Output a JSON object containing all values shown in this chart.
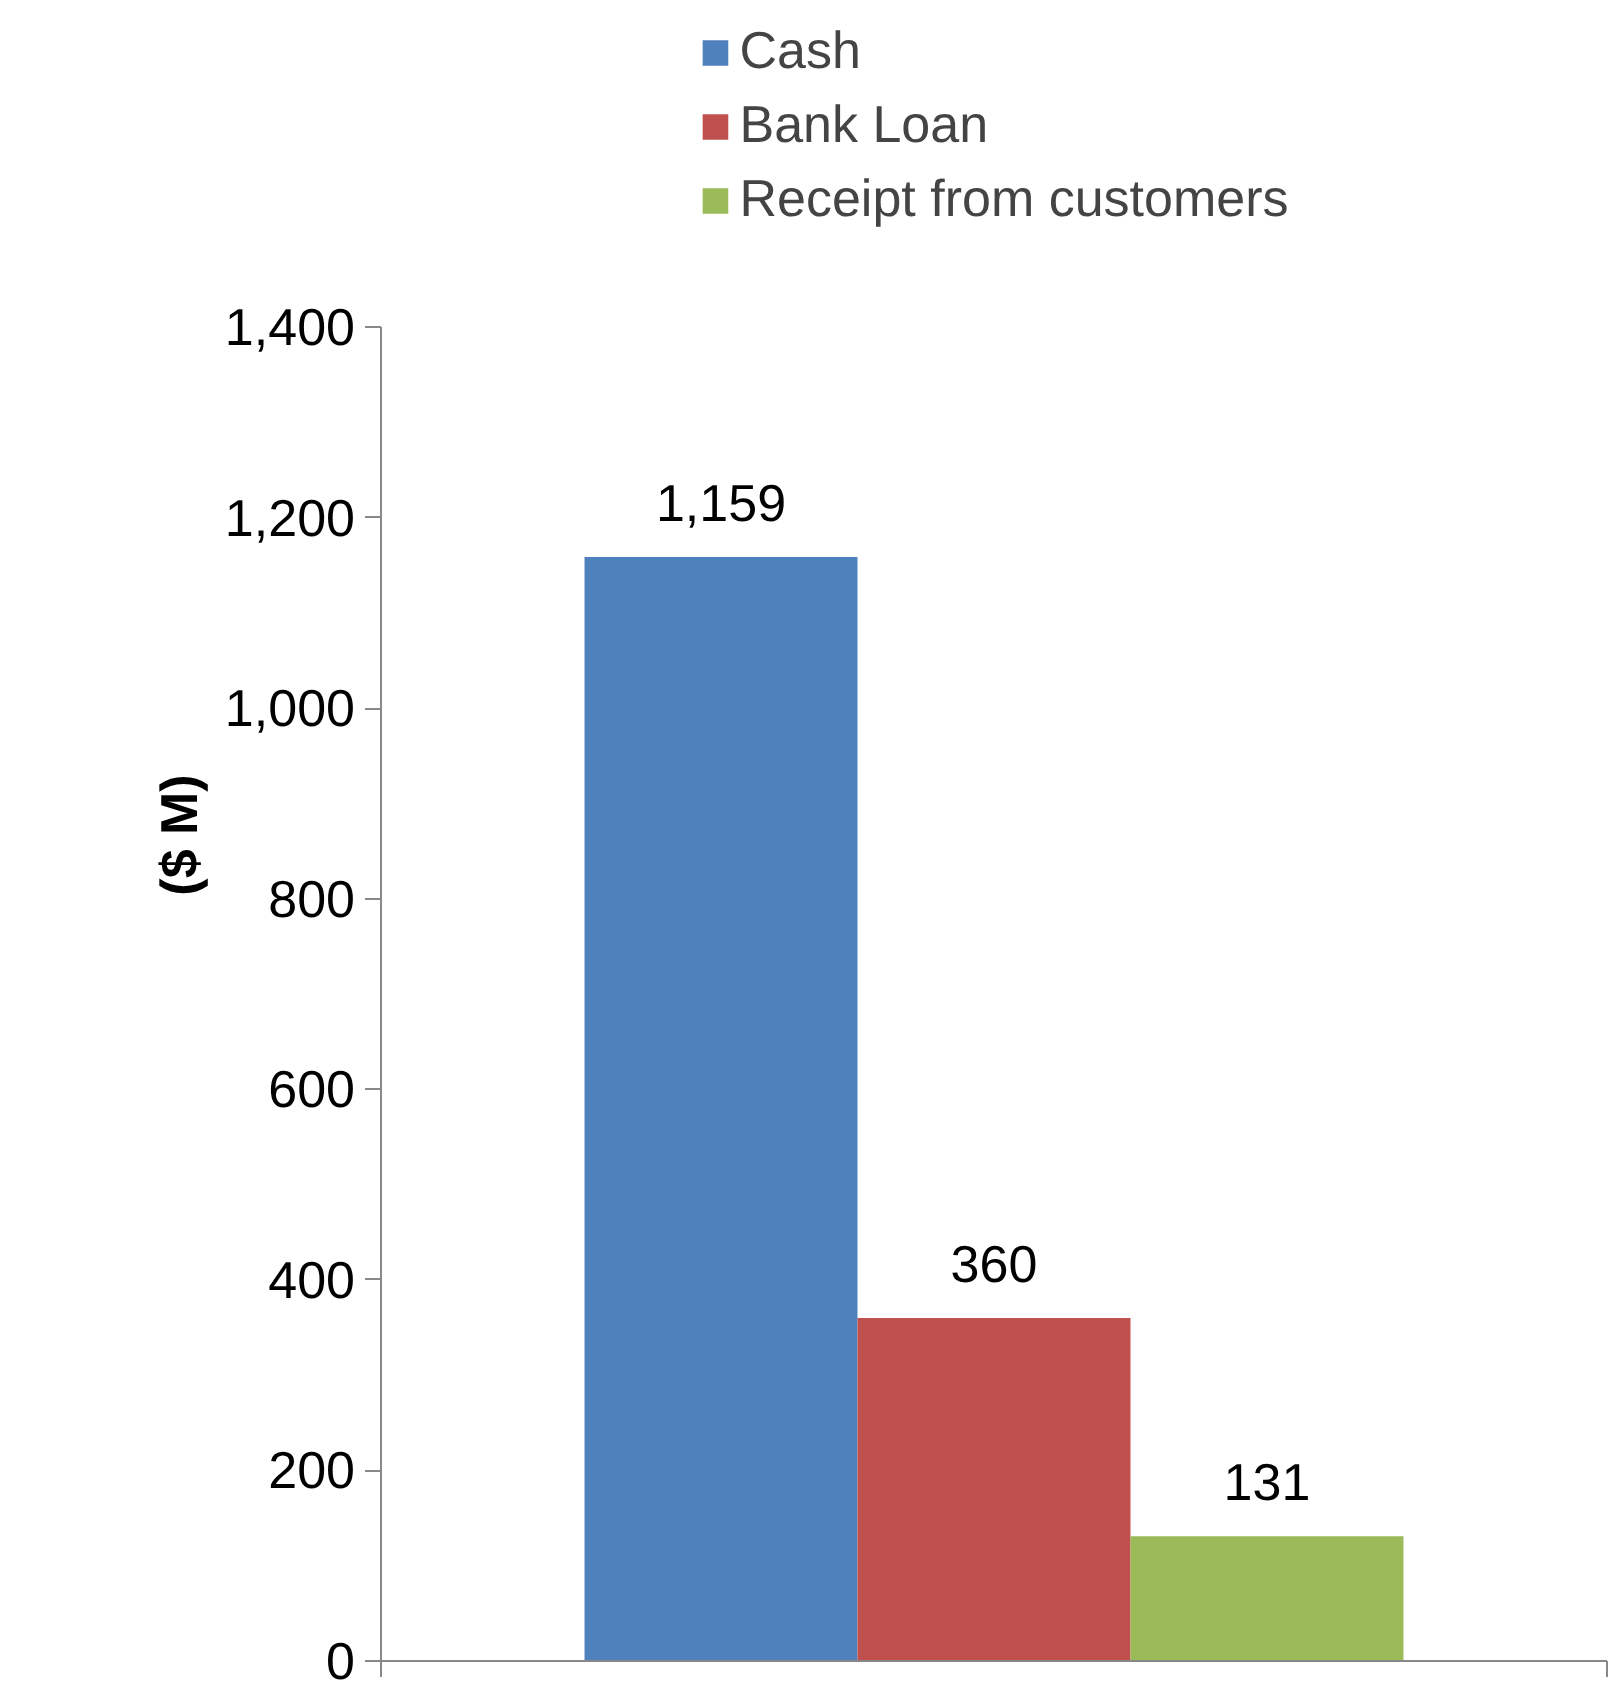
{
  "chart_data": {
    "type": "bar",
    "ylabel": "($ M)",
    "categories": [
      null
    ],
    "series": [
      {
        "name": "Cash",
        "color": "#4f81bd",
        "values": [
          1159
        ],
        "value_labels": [
          "1,159"
        ]
      },
      {
        "name": "Bank Loan",
        "color": "#c0504d",
        "values": [
          360
        ],
        "value_labels": [
          "360"
        ]
      },
      {
        "name": "Receipt from customers",
        "color": "#9bbb59",
        "values": [
          131
        ],
        "value_labels": [
          "131"
        ]
      }
    ],
    "ylim": [
      0,
      1400
    ],
    "yticks": [
      0,
      {
        "value": 200,
        "label": "200"
      },
      {
        "value": 400,
        "label": "400"
      },
      {
        "value": 600,
        "label": "600"
      },
      {
        "value": 800,
        "label": "800"
      },
      {
        "value": 1000,
        "label": "1,000"
      },
      {
        "value": 1200,
        "label": "1,200"
      },
      {
        "value": 1400,
        "label": "1,400"
      }
    ],
    "data_labels": true,
    "grid": false,
    "legend": "top"
  }
}
